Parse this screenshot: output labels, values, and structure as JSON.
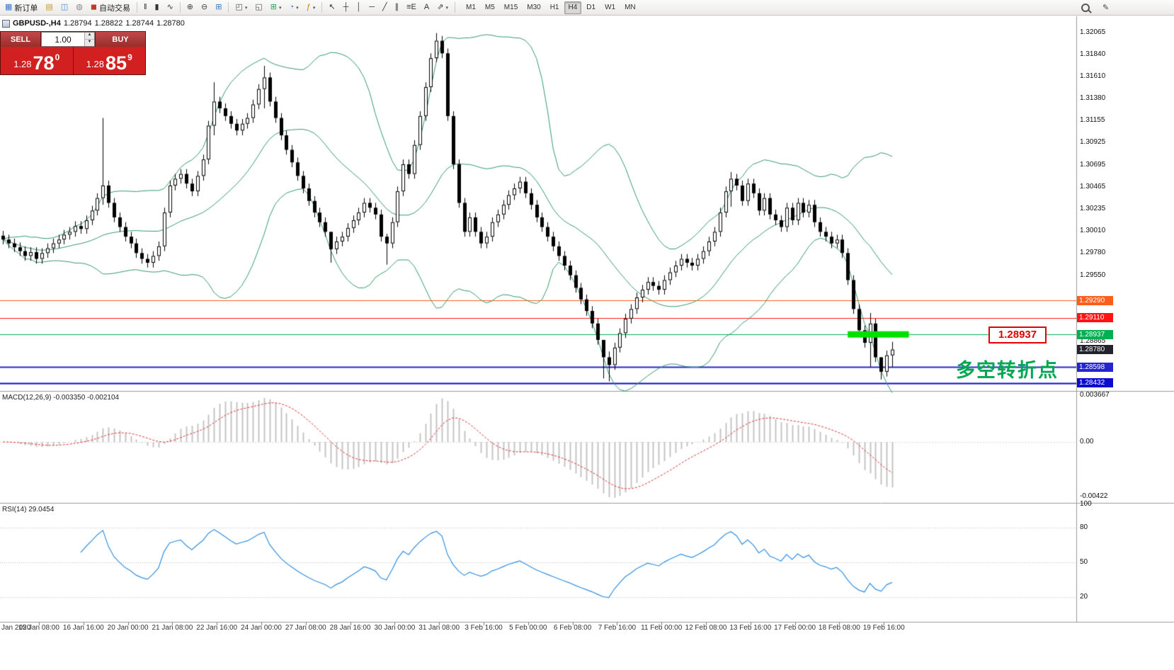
{
  "toolbar": {
    "items": [
      {
        "t": "btn",
        "name": "new-order-button",
        "glyph": "▦",
        "gc": "#3b78c4",
        "label": "新订单"
      },
      {
        "t": "btn",
        "name": "chart-profile-button",
        "glyph": "▤",
        "gc": "#c79a2e"
      },
      {
        "t": "btn",
        "name": "market-watch-button",
        "glyph": "◫",
        "gc": "#4a84d0"
      },
      {
        "t": "btn",
        "name": "terminal-button",
        "glyph": "◍",
        "gc": "#888888"
      },
      {
        "t": "btn",
        "name": "autotrading-button",
        "glyph": "◼",
        "gc": "#c0392b",
        "label": "自动交易"
      },
      {
        "t": "sep"
      },
      {
        "t": "btn",
        "name": "bar-chart-button",
        "glyph": "‖",
        "gc": "#333333"
      },
      {
        "t": "btn",
        "name": "candlestick-chart-button",
        "glyph": "▮",
        "gc": "#333333"
      },
      {
        "t": "btn",
        "name": "line-chart-button",
        "glyph": "∿",
        "gc": "#333333"
      },
      {
        "t": "sep"
      },
      {
        "t": "btn",
        "name": "zoom-in-button",
        "glyph": "⊕",
        "gc": "#444444"
      },
      {
        "t": "btn",
        "name": "zoom-out-button",
        "glyph": "⊖",
        "gc": "#444444"
      },
      {
        "t": "btn",
        "name": "tile-windows-button",
        "glyph": "⊞",
        "gc": "#3b78c4"
      },
      {
        "t": "sep"
      },
      {
        "t": "btn",
        "name": "templates-button",
        "glyph": "◰",
        "gc": "#555555",
        "caret": true
      },
      {
        "t": "btn",
        "name": "profiles-button",
        "glyph": "◱",
        "gc": "#555555"
      },
      {
        "t": "btn",
        "name": "new-chart-button",
        "glyph": "⊞",
        "gc": "#2da44e",
        "caret": true
      },
      {
        "t": "btn",
        "name": "refresh-button",
        "glyph": "◔",
        "gc": "#3b78c4",
        "caret": true
      },
      {
        "t": "btn",
        "name": "indicators-button",
        "glyph": "ƒ",
        "gc": "#b58900",
        "caret": true
      },
      {
        "t": "sep"
      },
      {
        "t": "btn",
        "name": "cursor-tool-button",
        "glyph": "↖",
        "gc": "#333333"
      },
      {
        "t": "btn",
        "name": "crosshair-tool-button",
        "glyph": "┼",
        "gc": "#333333"
      },
      {
        "t": "btn",
        "name": "vertical-line-tool-button",
        "glyph": "│",
        "gc": "#333333"
      },
      {
        "t": "btn",
        "name": "horizontal-line-tool-button",
        "glyph": "─",
        "gc": "#333333"
      },
      {
        "t": "btn",
        "name": "trendline-tool-button",
        "glyph": "╱",
        "gc": "#333333"
      },
      {
        "t": "btn",
        "name": "channel-tool-button",
        "glyph": "∥",
        "gc": "#333333"
      },
      {
        "t": "btn",
        "name": "fibonacci-tool-button",
        "glyph": "≡E",
        "gc": "#333333"
      },
      {
        "t": "btn",
        "name": "text-tool-button",
        "glyph": "A",
        "gc": "#333333"
      },
      {
        "t": "btn",
        "name": "arrows-tool-button",
        "glyph": "⇗",
        "gc": "#333333",
        "caret": true
      },
      {
        "t": "sep"
      }
    ],
    "timeframes": [
      "M1",
      "M5",
      "M15",
      "M30",
      "H1",
      "H4",
      "D1",
      "W1",
      "MN"
    ],
    "active_timeframe": "H4",
    "right_items": [
      {
        "name": "search-button",
        "css": "mag"
      },
      {
        "name": "edit-button",
        "glyph": "✎",
        "gc": "#444444"
      }
    ]
  },
  "chart_header": {
    "symbol_period": "GBPUSD-,H4",
    "open": "1.28794",
    "high": "1.28822",
    "low": "1.28744",
    "close": "1.28780"
  },
  "trade_panel": {
    "sell_label": "SELL",
    "buy_label": "BUY",
    "volume": "1.00",
    "sell_price_small": "1.28",
    "sell_price_big": "78",
    "sell_price_sup": "0",
    "buy_price_small": "1.28",
    "buy_price_big": "85",
    "buy_price_sup": "9"
  },
  "annotations": {
    "turning_point": "多空转折点",
    "level_callout": "1.28937"
  },
  "chart_data": {
    "type": "candlestick",
    "symbol": "GBPUSD-",
    "timeframe": "H4",
    "candles": {
      "first_open": 1.2996,
      "closes": [
        1.2992,
        1.2988,
        1.2984,
        1.298,
        1.2975,
        1.2979,
        1.2972,
        1.2978,
        1.2983,
        1.2988,
        1.2992,
        1.2997,
        1.3,
        1.3006,
        1.3003,
        1.3012,
        1.3022,
        1.3035,
        1.3048,
        1.303,
        1.3015,
        1.3005,
        1.2995,
        1.2988,
        1.2978,
        1.2972,
        1.2968,
        1.2975,
        1.2985,
        1.302,
        1.3048,
        1.3055,
        1.306,
        1.305,
        1.3042,
        1.3058,
        1.3075,
        1.311,
        1.3135,
        1.3128,
        1.312,
        1.3112,
        1.3105,
        1.3112,
        1.3118,
        1.3132,
        1.3148,
        1.316,
        1.3135,
        1.3118,
        1.31,
        1.3085,
        1.3072,
        1.3058,
        1.3045,
        1.3032,
        1.302,
        1.301,
        1.3,
        1.2982,
        1.299,
        1.2995,
        1.3004,
        1.3012,
        1.302,
        1.303,
        1.3025,
        1.3018,
        1.2995,
        1.2988,
        1.301,
        1.3042,
        1.307,
        1.306,
        1.309,
        1.312,
        1.315,
        1.318,
        1.3198,
        1.3185,
        1.312,
        1.307,
        1.303,
        1.3,
        1.3015,
        1.3,
        1.2988,
        1.2995,
        1.301,
        1.3018,
        1.3028,
        1.3038,
        1.3045,
        1.3052,
        1.304,
        1.3028,
        1.3015,
        1.3005,
        1.2995,
        1.2985,
        1.2975,
        1.2965,
        1.2955,
        1.2942,
        1.293,
        1.2918,
        1.2905,
        1.2888,
        1.287,
        1.2862,
        1.288,
        1.2895,
        1.291,
        1.292,
        1.2932,
        1.294,
        1.2948,
        1.2944,
        1.294,
        1.295,
        1.2958,
        1.2965,
        1.2972,
        1.2968,
        1.2965,
        1.2972,
        1.298,
        1.299,
        1.3,
        1.302,
        1.3042,
        1.3055,
        1.3048,
        1.3032,
        1.305,
        1.304,
        1.3022,
        1.3035,
        1.3018,
        1.3012,
        1.3005,
        1.3025,
        1.3012,
        1.303,
        1.302,
        1.3028,
        1.301,
        1.3,
        1.2995,
        1.2988,
        1.2992,
        1.2978,
        1.295,
        1.292,
        1.2898,
        1.2885,
        1.2905,
        1.287,
        1.2855,
        1.2872,
        1.2878
      ],
      "spikes": {
        "18": [
          1.3118,
          1.3028
        ],
        "38": [
          1.3155,
          1.31
        ],
        "47": [
          1.3172,
          1.3128
        ],
        "59": [
          1.2995,
          1.2968
        ],
        "69": [
          1.2998,
          1.2966
        ],
        "78": [
          1.3206,
          1.3176
        ],
        "108": [
          1.2886,
          1.2848
        ],
        "109": [
          1.2876,
          1.2845
        ],
        "131": [
          1.3062,
          1.3026
        ],
        "156": [
          1.2916,
          1.286
        ],
        "158": [
          1.287,
          1.2847
        ],
        "160": [
          1.2886,
          1.286
        ]
      }
    },
    "bollinger": {
      "period": 20,
      "deviation": 2
    },
    "horizontal_lines": [
      {
        "price": 1.2929,
        "label": "1.29290",
        "color": "#ff5e1a",
        "line": true,
        "lw": 1
      },
      {
        "price": 1.2911,
        "label": "1.29110",
        "color": "#ff1414",
        "line": true,
        "lw": 1
      },
      {
        "price": 1.28937,
        "label": "1.28937",
        "color": "#00b050",
        "line": true,
        "lw": 1
      },
      {
        "price": 1.2878,
        "label": "1.28780",
        "color": "#23232e",
        "line": false,
        "lw": 1
      },
      {
        "price": 1.28598,
        "label": "1.28598",
        "color": "#2525cf",
        "line": true,
        "lw": 2
      },
      {
        "price": 1.28432,
        "label": "1.28432",
        "color": "#0b0bcf",
        "line": true,
        "lw": 2
      }
    ],
    "highlight_segment": {
      "start_index": 152,
      "end_index": 163,
      "price": 1.28937,
      "thickness": 9
    },
    "price_axis_labels": [
      "1.32065",
      "1.31840",
      "1.31610",
      "1.31380",
      "1.31155",
      "1.30925",
      "1.30695",
      "1.30465",
      "1.30235",
      "1.30010",
      "1.29780",
      "1.29550",
      "1.28865"
    ],
    "macd": {
      "label": "MACD(12,26,9) -0.003350 -0.002104",
      "fast": 12,
      "slow": 26,
      "signal": 9,
      "axis": [
        {
          "v": 0.003667,
          "t": "0.003667"
        },
        {
          "v": 0.0,
          "t": "0.00"
        },
        {
          "v": -0.00422,
          "t": "-0.00422"
        }
      ]
    },
    "rsi": {
      "label": "RSI(14) 29.0454",
      "period": 14,
      "value": 29.0454,
      "axis": [
        {
          "v": 100,
          "t": "100"
        },
        {
          "v": 80,
          "t": "80"
        },
        {
          "v": 50,
          "t": "50"
        },
        {
          "v": 20,
          "t": "20"
        }
      ],
      "levels": [
        80,
        50,
        20
      ]
    },
    "time_axis": {
      "month": "Jan 2020",
      "labels": [
        "15 Jan 08:00",
        "16 Jan 16:00",
        "20 Jan 00:00",
        "21 Jan 08:00",
        "22 Jan 16:00",
        "24 Jan 00:00",
        "27 Jan 08:00",
        "28 Jan 16:00",
        "30 Jan 00:00",
        "31 Jan 08:00",
        "3 Feb 16:00",
        "5 Feb 00:00",
        "6 Feb 08:00",
        "7 Feb 16:00",
        "11 Feb 00:00",
        "12 Feb 08:00",
        "13 Feb 16:00",
        "17 Feb 00:00",
        "18 Feb 08:00",
        "19 Feb 16:00"
      ]
    },
    "colors": {
      "bands": "#33996b",
      "candle_up": "#ffffff",
      "candle_down": "#000000",
      "candle_border": "#000000",
      "highlight": "#00e000",
      "macd_hist": "#c4c4c4",
      "macd_signal": "#e03030",
      "rsi": "#2f8fe0",
      "annotation": "#00a651",
      "callout": "#e00000"
    }
  }
}
